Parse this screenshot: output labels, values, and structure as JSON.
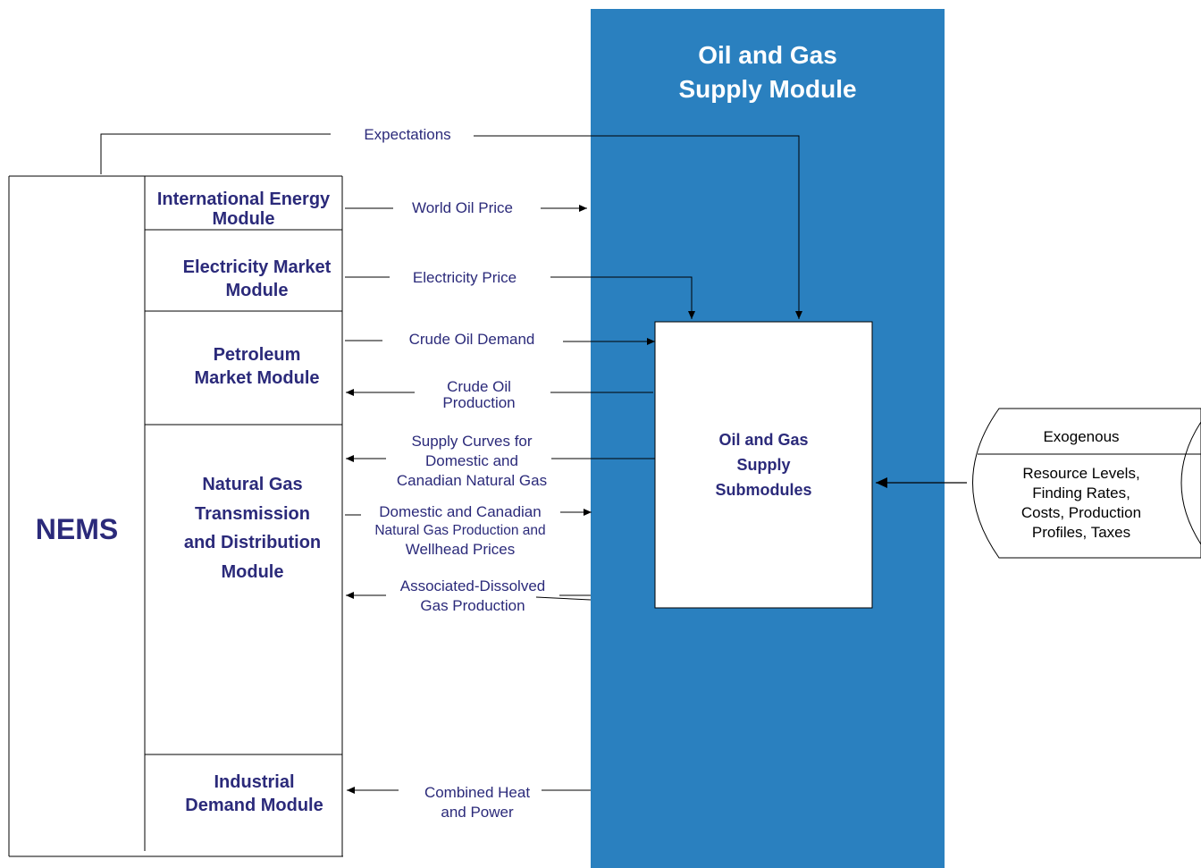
{
  "main_module_title": [
    "Oil and Gas",
    "Supply Module"
  ],
  "nems_label": "NEMS",
  "modules": {
    "international_energy": [
      "International Energy",
      "Module"
    ],
    "electricity_market": [
      "Electricity Market",
      "Module"
    ],
    "petroleum_market": [
      "Petroleum",
      "Market Module"
    ],
    "natural_gas": [
      "Natural Gas",
      "Transmission",
      "and Distribution",
      "Module"
    ],
    "industrial_demand": [
      "Industrial",
      "Demand Module"
    ]
  },
  "flows": {
    "expectations": "Expectations",
    "world_oil_price": "World Oil Price",
    "electricity_price": "Electricity Price",
    "crude_oil_demand": "Crude Oil Demand",
    "crude_oil_production": [
      "Crude Oil",
      "Production"
    ],
    "supply_curves": [
      "Supply Curves for",
      "Domestic and",
      "Canadian Natural Gas"
    ],
    "domestic_canadian": [
      "Domestic and Canadian",
      "Natural Gas Production and",
      "Wellhead Prices"
    ],
    "associated_dissolved": [
      "Associated-Dissolved",
      "Gas Production"
    ],
    "combined_heat": [
      "Combined Heat",
      "and Power"
    ]
  },
  "submodules_box": [
    "Oil and Gas",
    "Supply",
    "Submodules"
  ],
  "exogenous": {
    "header": "Exogenous",
    "body": [
      "Resource Levels,",
      "Finding Rates,",
      "Costs, Production",
      "Profiles, Taxes"
    ]
  },
  "colors": {
    "main_blue": "#2a80bf",
    "text_navy": "#2b2a7a",
    "line": "#000000"
  }
}
